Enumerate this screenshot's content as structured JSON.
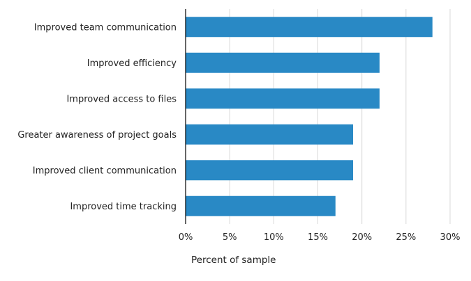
{
  "chart_data": {
    "type": "bar",
    "orientation": "horizontal",
    "title": "",
    "xlabel": "Percent of sample",
    "ylabel": "",
    "categories": [
      "Improved team communication",
      "Improved efficiency",
      "Improved access to files",
      "Greater awareness of project goals",
      "Improved client communication",
      "Improved time tracking"
    ],
    "values": [
      28,
      22,
      22,
      19,
      19,
      17
    ],
    "xlim": [
      0,
      30
    ],
    "xticks": [
      0,
      5,
      10,
      15,
      20,
      25,
      30
    ],
    "xtick_labels": [
      "0%",
      "5%",
      "10%",
      "15%",
      "20%",
      "25%",
      "30%"
    ],
    "grid": true,
    "bar_color": "#2989c5",
    "grid_color": "#d9d9d9",
    "axis_color": "#000000"
  }
}
